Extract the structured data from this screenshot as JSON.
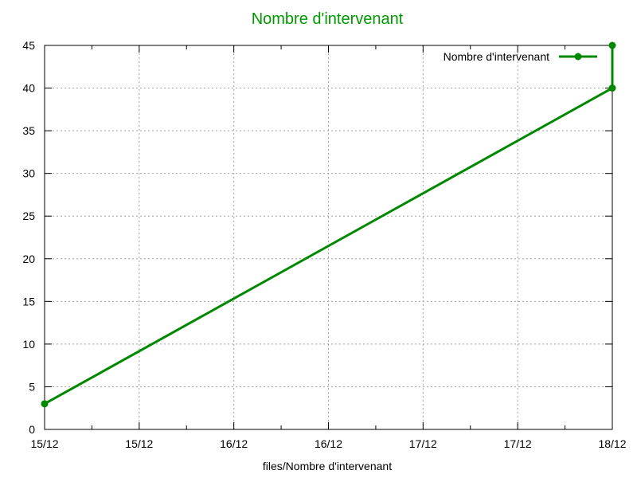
{
  "chart_data": {
    "type": "line",
    "title": "Nombre d'intervenant",
    "xlabel": "files/Nombre d'intervenant",
    "ylabel": "",
    "ylim": [
      0,
      45
    ],
    "yticks": [
      0,
      5,
      10,
      15,
      20,
      25,
      30,
      35,
      40,
      45
    ],
    "xlim": [
      0,
      6
    ],
    "xticks": [
      {
        "x": 0,
        "label": "15/12"
      },
      {
        "x": 1,
        "label": "15/12"
      },
      {
        "x": 2,
        "label": "16/12"
      },
      {
        "x": 3,
        "label": "16/12"
      },
      {
        "x": 4,
        "label": "17/12"
      },
      {
        "x": 5,
        "label": "17/12"
      },
      {
        "x": 6,
        "label": "18/12"
      }
    ],
    "grid": true,
    "legend_position": "top-right",
    "series": [
      {
        "name": "Nombre d'intervenant",
        "color": "#008800",
        "marker": "circle",
        "points": [
          {
            "x": 0,
            "y": 3
          },
          {
            "x": 6,
            "y": 40
          },
          {
            "x": 6,
            "y": 45
          }
        ]
      }
    ]
  }
}
